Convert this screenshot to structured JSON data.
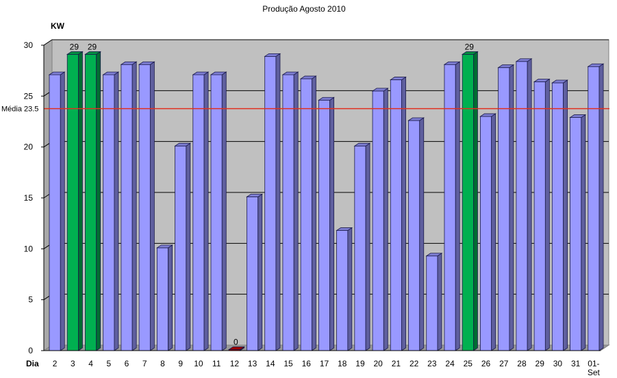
{
  "chart_data": {
    "type": "bar",
    "title": "Produção Agosto 2010",
    "ylabel": "KW",
    "xlabel": "Dia",
    "ylim": [
      0,
      30
    ],
    "yticks": [
      0,
      5,
      10,
      15,
      20,
      25,
      30
    ],
    "grid": true,
    "categories": [
      "2",
      "3",
      "4",
      "5",
      "6",
      "7",
      "8",
      "9",
      "10",
      "11",
      "12",
      "13",
      "14",
      "15",
      "16",
      "17",
      "18",
      "19",
      "20",
      "21",
      "22",
      "23",
      "24",
      "25",
      "26",
      "27",
      "28",
      "29",
      "30",
      "31",
      "01-Set"
    ],
    "values": [
      27.1,
      29.1,
      29.1,
      27.1,
      28.1,
      28.1,
      10.1,
      20.1,
      27.1,
      27.1,
      0.1,
      15.1,
      28.9,
      27.1,
      26.7,
      24.6,
      11.8,
      20.1,
      25.5,
      26.6,
      22.6,
      9.3,
      28.1,
      29.1,
      23.0,
      27.8,
      28.4,
      26.4,
      26.3,
      22.9,
      27.9
    ],
    "data_labels": {
      "3": "29",
      "4": "29",
      "12": "0",
      "25": "29"
    },
    "bar_colors": {
      "normal": "#9999ff",
      "max": "#00b050",
      "min": "#c00000"
    },
    "max_days": [
      "3",
      "4",
      "25"
    ],
    "min_days": [
      "12"
    ],
    "average": {
      "value": 23.5,
      "label": "Média 23.5",
      "color": "#e03020"
    },
    "background": "#c0c0c0"
  }
}
